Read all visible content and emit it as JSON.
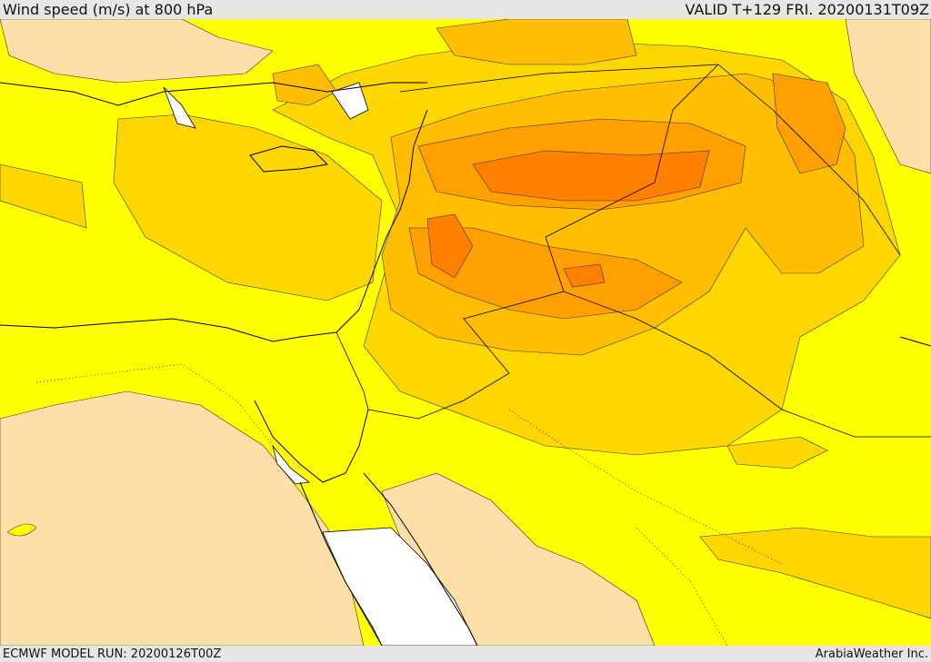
{
  "header": {
    "title": "Wind speed (m/s) at 800 hPa",
    "valid_time": "VALID T+129 FRI. 20200131T09Z"
  },
  "footer": {
    "model_run": "ECMWF MODEL RUN: 20200126T00Z",
    "credit": "ArabiaWeather Inc."
  },
  "legend_colors": {
    "lowest": "#ffdfa8",
    "low": "#ffff00",
    "moderate": "#ffd700",
    "elevated": "#ffbf00",
    "high": "#ff9f00",
    "highest": "#ff7f00",
    "missing": "#ffffff"
  }
}
